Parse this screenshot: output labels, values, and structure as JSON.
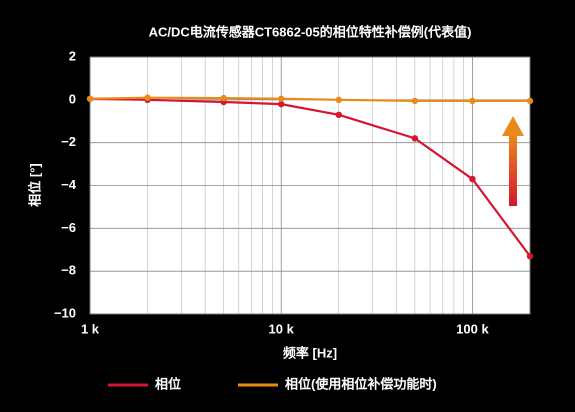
{
  "chart_data": {
    "type": "line",
    "title": "AC/DC电流传感器CT6862-05的相位特性补偿例(代表值)",
    "x_label": "频率  [Hz]",
    "y_label": "相位 [°]",
    "x": [
      1000,
      2000,
      5000,
      10000,
      20000,
      50000,
      100000,
      200000
    ],
    "series": [
      {
        "name": "相位",
        "color": "#d4162e",
        "values": [
          0.05,
          0.0,
          -0.1,
          -0.2,
          -0.7,
          -1.8,
          -3.7,
          -7.3
        ]
      },
      {
        "name": "相位(使用相位补偿功能时)",
        "color": "#ea8a1a",
        "values": [
          0.05,
          0.1,
          0.08,
          0.05,
          0.0,
          -0.05,
          -0.05,
          -0.05
        ]
      }
    ],
    "xlim": [
      1000,
      200000
    ],
    "x_log": true,
    "minor_grid": true,
    "xticks": [
      {
        "value": 1000,
        "label": "1 k"
      },
      {
        "value": 10000,
        "label": "10 k"
      },
      {
        "value": 100000,
        "label": "100 k"
      }
    ],
    "ylim": [
      -10,
      2
    ],
    "yticks": [
      {
        "value": -10,
        "label": "−10"
      },
      {
        "value": -8,
        "label": "−8"
      },
      {
        "value": -6,
        "label": "−6"
      },
      {
        "value": -4,
        "label": "−4"
      },
      {
        "value": -2,
        "label": "−2"
      },
      0,
      2
    ],
    "grid": true,
    "legend": "bottom"
  }
}
